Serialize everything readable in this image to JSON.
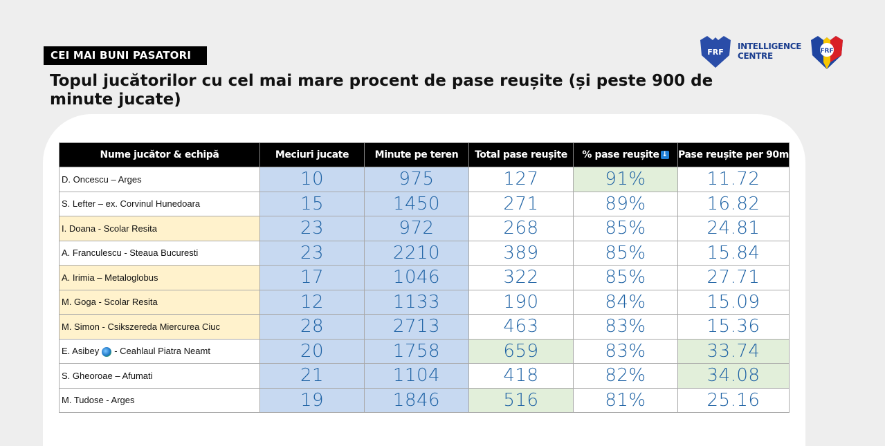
{
  "section_tag": "CEI MAI BUNI PASATORI",
  "headline": "Topul jucătorilor cu cel mai mare procent de pase reușite (și peste 900 de minute jucate)",
  "logo": {
    "badge_left": "FRF",
    "text_line1": "INTELLIGENCE",
    "text_line2": "CENTRE",
    "badge_right": "FRF"
  },
  "table": {
    "headers": [
      "Nume jucător & echipă",
      "Meciuri jucate",
      "Minute pe teren",
      "Total pase reușite",
      "% pase reușite",
      "Pase reușite per 90m"
    ],
    "rows": [
      {
        "name": "D. Oncescu – Arges",
        "matches": "10",
        "minutes": "975",
        "passes": "127",
        "pct": "91%",
        "per90": "11.72"
      },
      {
        "name": "S. Lefter – ex. Corvinul Hunedoara",
        "matches": "15",
        "minutes": "1450",
        "passes": "271",
        "pct": "89%",
        "per90": "16.82"
      },
      {
        "name": "I. Doana - Scolar Resita",
        "matches": "23",
        "minutes": "972",
        "passes": "268",
        "pct": "85%",
        "per90": "24.81"
      },
      {
        "name": "A. Franculescu - Steaua Bucuresti",
        "matches": "23",
        "minutes": "2210",
        "passes": "389",
        "pct": "85%",
        "per90": "15.84"
      },
      {
        "name": "A. Irimia – Metaloglobus",
        "matches": "17",
        "minutes": "1046",
        "passes": "322",
        "pct": "85%",
        "per90": "27.71"
      },
      {
        "name": "M. Goga - Scolar Resita",
        "matches": "12",
        "minutes": "1133",
        "passes": "190",
        "pct": "84%",
        "per90": "15.09"
      },
      {
        "name": "M. Simon - Csikszereda Miercurea Ciuc",
        "matches": "28",
        "minutes": "2713",
        "passes": "463",
        "pct": "83%",
        "per90": "15.36"
      },
      {
        "name_a": "E. Asibey",
        "name_b": "- Ceahlaul Piatra Neamt",
        "matches": "20",
        "minutes": "1758",
        "passes": "659",
        "pct": "83%",
        "per90": "33.74"
      },
      {
        "name": "S. Gheoroae – Afumati",
        "matches": "21",
        "minutes": "1104",
        "passes": "418",
        "pct": "82%",
        "per90": "34.08"
      },
      {
        "name": "M. Tudose - Arges",
        "matches": "19",
        "minutes": "1846",
        "passes": "516",
        "pct": "81%",
        "per90": "25.16"
      }
    ]
  },
  "colors": {
    "blue_cell": "#c7d9f1",
    "green_cell": "#e2efda",
    "yellow_cell": "#fff2cc",
    "number_text": "#1e62a4"
  },
  "icons": {
    "sort": "sort-down-arrow-icon",
    "flag": "globe-icon"
  }
}
